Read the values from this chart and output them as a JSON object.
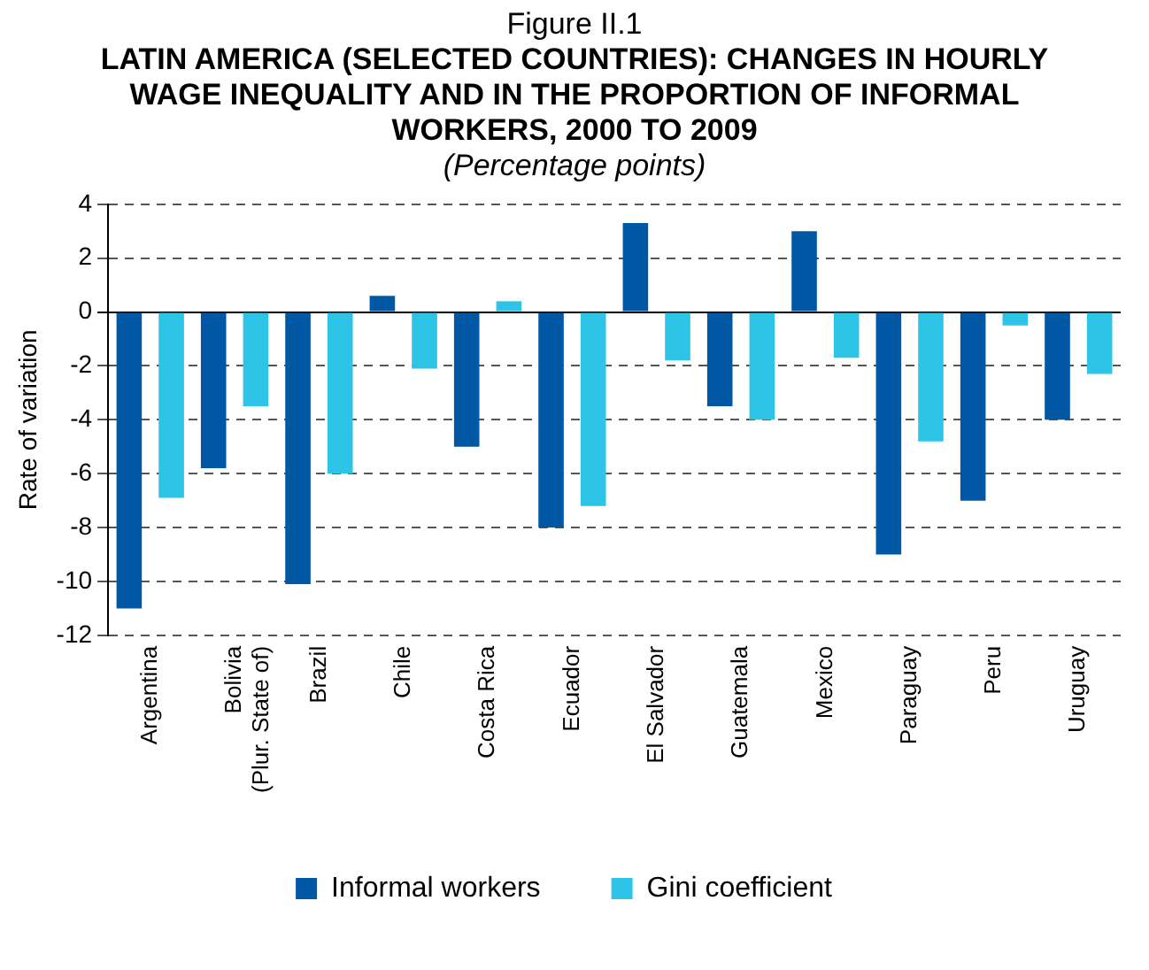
{
  "chart_data": {
    "type": "bar",
    "title": "LATIN AMERICA (SELECTED COUNTRIES): CHANGES IN HOURLY WAGE INEQUALITY AND IN THE PROPORTION OF INFORMAL WORKERS, 2000 TO 2009",
    "subtitle": "(Percentage points)",
    "annotations": [
      "Figure II.1"
    ],
    "ylabel": "Rate of variation",
    "categories": [
      "Argentina",
      "Bolivia (Plur. State of)",
      "Brazil",
      "Chile",
      "Costa Rica",
      "Ecuador",
      "El Salvador",
      "Guatemala",
      "Mexico",
      "Paraguay",
      "Peru",
      "Uruguay"
    ],
    "series": [
      {
        "name": "Informal workers",
        "color": "#0057a3",
        "values": [
          -11.0,
          -5.8,
          -10.1,
          0.6,
          -5.0,
          -8.0,
          3.3,
          -3.5,
          3.0,
          -9.0,
          -7.0,
          -4.0
        ]
      },
      {
        "name": "Gini coefficient",
        "color": "#2ec4e8",
        "values": [
          -6.9,
          -3.5,
          -6.0,
          -2.1,
          0.4,
          -7.2,
          -1.8,
          -4.0,
          -1.7,
          -4.8,
          -0.5,
          -2.3
        ]
      }
    ],
    "ylim": [
      -12,
      4
    ],
    "yticks": [
      -12,
      -10,
      -8,
      -6,
      -4,
      -2,
      0,
      2,
      4
    ],
    "grid": "y",
    "legend": "bottom"
  }
}
